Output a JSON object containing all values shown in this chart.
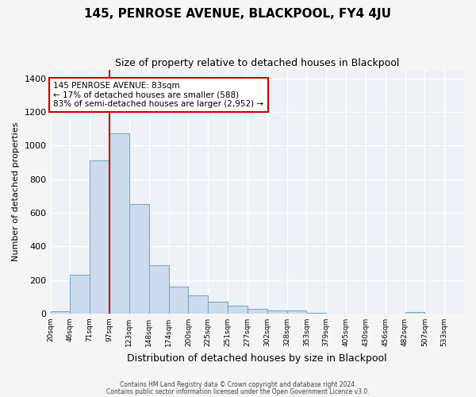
{
  "title": "145, PENROSE AVENUE, BLACKPOOL, FY4 4JU",
  "subtitle": "Size of property relative to detached houses in Blackpool",
  "xlabel": "Distribution of detached houses by size in Blackpool",
  "ylabel": "Number of detached properties",
  "bar_color": "#ccdcec",
  "bar_edge_color": "#7aaacc",
  "background_color": "#eef2f7",
  "figure_color": "#f5f5f5",
  "grid_color": "#ffffff",
  "bin_labels": [
    "20sqm",
    "46sqm",
    "71sqm",
    "97sqm",
    "123sqm",
    "148sqm",
    "174sqm",
    "200sqm",
    "225sqm",
    "251sqm",
    "277sqm",
    "302sqm",
    "328sqm",
    "353sqm",
    "379sqm",
    "405sqm",
    "430sqm",
    "456sqm",
    "482sqm",
    "507sqm",
    "533sqm"
  ],
  "bar_heights": [
    15,
    230,
    910,
    1070,
    650,
    290,
    160,
    107,
    72,
    45,
    27,
    20,
    20,
    5,
    0,
    0,
    0,
    0,
    10,
    0,
    0
  ],
  "vline_bin": 3,
  "vline_color": "#cc0000",
  "ylim": [
    0,
    1450
  ],
  "yticks": [
    0,
    200,
    400,
    600,
    800,
    1000,
    1200,
    1400
  ],
  "annotation_title": "145 PENROSE AVENUE: 83sqm",
  "annotation_line1": "← 17% of detached houses are smaller (588)",
  "annotation_line2": "83% of semi-detached houses are larger (2,952) →",
  "annotation_box_color": "#ffffff",
  "annotation_box_edge": "#cc0000",
  "footnote1": "Contains HM Land Registry data © Crown copyright and database right 2024.",
  "footnote2": "Contains public sector information licensed under the Open Government Licence v3.0."
}
